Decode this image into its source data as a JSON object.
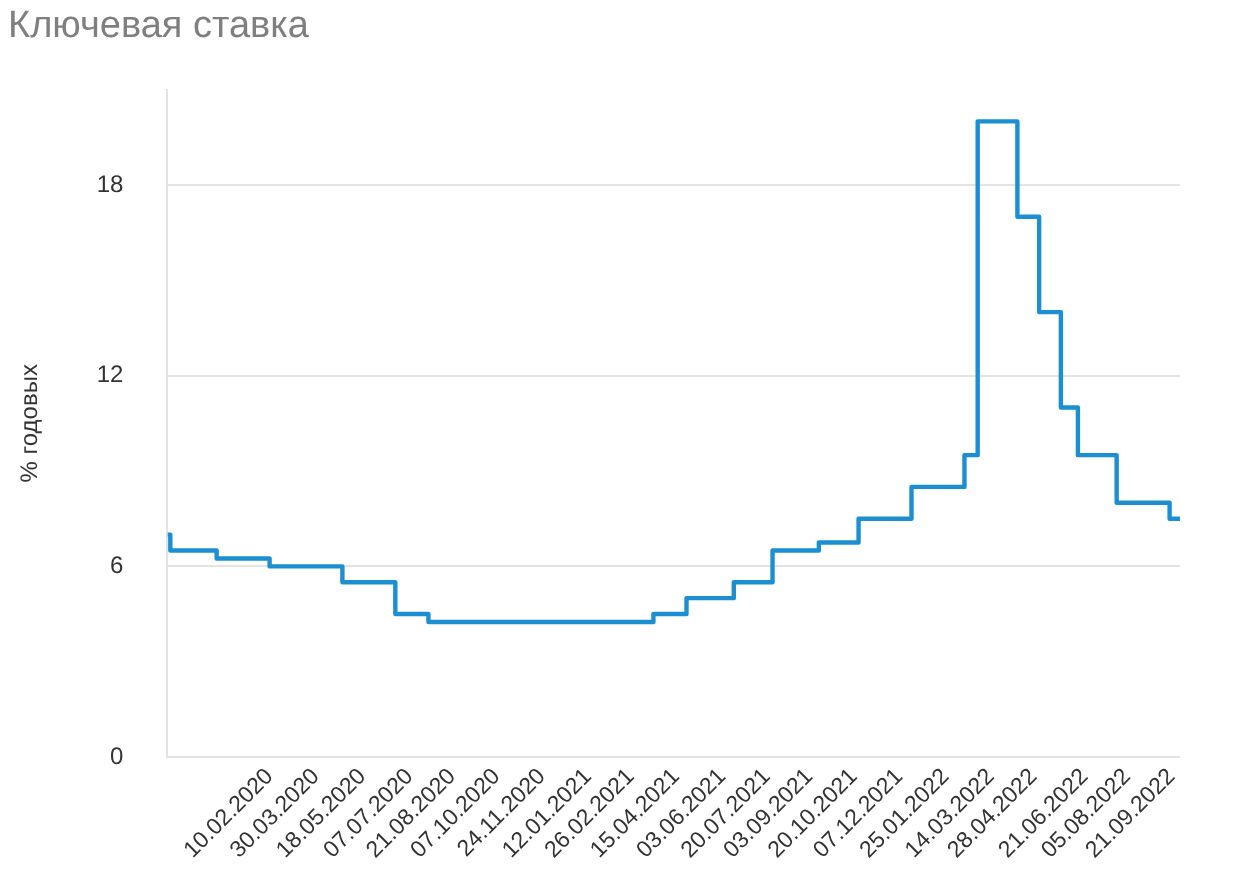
{
  "chart_data": {
    "type": "step",
    "title": "Ключевая ставка",
    "ylabel": "% годовых",
    "x": [
      "2019-10-25",
      "2019-10-28",
      "2019-12-16",
      "2020-02-10",
      "2020-04-27",
      "2020-06-22",
      "2020-07-27",
      "2021-03-22",
      "2021-04-26",
      "2021-06-15",
      "2021-07-26",
      "2021-09-13",
      "2021-10-25",
      "2021-12-20",
      "2022-02-14",
      "2022-02-28",
      "2022-04-11",
      "2022-05-04",
      "2022-05-27",
      "2022-06-14",
      "2022-07-25",
      "2022-09-19",
      "2022-09-30"
    ],
    "series": [
      {
        "color": "#1b8fd2",
        "values": [
          7,
          6.5,
          6.25,
          6,
          5.5,
          4.5,
          4.25,
          4.5,
          5,
          5.5,
          6.5,
          6.75,
          7.5,
          8.5,
          9.5,
          20,
          17,
          14,
          11,
          9.5,
          8,
          7.5,
          7.5
        ]
      }
    ],
    "xlim": [
      "2019-10-25",
      "2022-09-30"
    ],
    "xticks": [
      {
        "value": "2020-02-10",
        "label": "10.02.2020"
      },
      {
        "value": "2020-03-30",
        "label": "30.03.2020"
      },
      {
        "value": "2020-05-18",
        "label": "18.05.2020"
      },
      {
        "value": "2020-07-07",
        "label": "07.07.2020"
      },
      {
        "value": "2020-08-21",
        "label": "21.08.2020"
      },
      {
        "value": "2020-10-07",
        "label": "07.10.2020"
      },
      {
        "value": "2020-11-24",
        "label": "24.11.2020"
      },
      {
        "value": "2021-01-12",
        "label": "12.01.2021"
      },
      {
        "value": "2021-02-26",
        "label": "26.02.2021"
      },
      {
        "value": "2021-04-15",
        "label": "15.04.2021"
      },
      {
        "value": "2021-06-03",
        "label": "03.06.2021"
      },
      {
        "value": "2021-07-20",
        "label": "20.07.2021"
      },
      {
        "value": "2021-09-03",
        "label": "03.09.2021"
      },
      {
        "value": "2021-10-20",
        "label": "20.10.2021"
      },
      {
        "value": "2021-12-07",
        "label": "07.12.2021"
      },
      {
        "value": "2022-01-25",
        "label": "25.01.2022"
      },
      {
        "value": "2022-03-14",
        "label": "14.03.2022"
      },
      {
        "value": "2022-04-28",
        "label": "28.04.2022"
      },
      {
        "value": "2022-06-21",
        "label": "21.06.2022"
      },
      {
        "value": "2022-08-05",
        "label": "05.08.2022"
      },
      {
        "value": "2022-09-21",
        "label": "21.09.2022"
      }
    ],
    "ylim": [
      0,
      21
    ],
    "yticks": [
      0,
      6,
      12,
      18
    ],
    "grid": "y"
  }
}
